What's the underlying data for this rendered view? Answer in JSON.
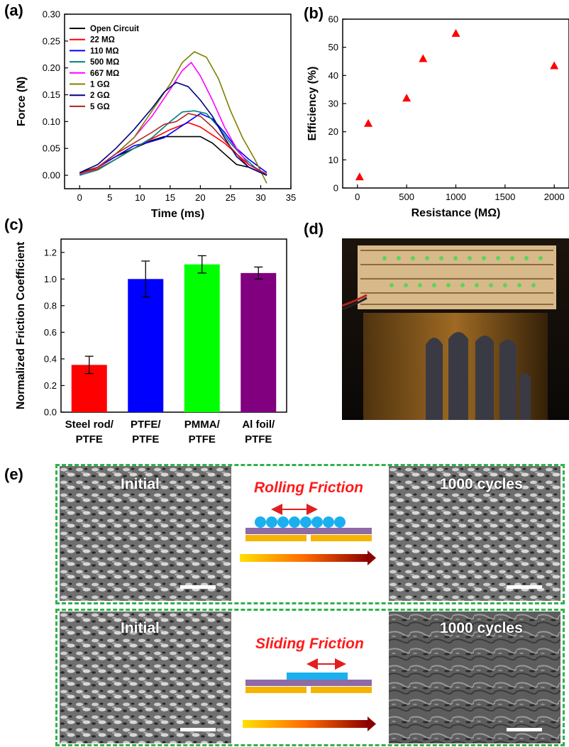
{
  "panels": {
    "a": "(a)",
    "b": "(b)",
    "c": "(c)",
    "d": "(d)",
    "e": "(e)"
  },
  "chart_data": [
    {
      "panel": "a",
      "type": "line",
      "xlabel": "Time (ms)",
      "ylabel": "Force (N)",
      "xlim": [
        -2.5,
        35
      ],
      "ylim": [
        -0.025,
        0.3
      ],
      "xticks": [
        0,
        5,
        10,
        15,
        20,
        25,
        30,
        35
      ],
      "yticks": [
        0.0,
        0.05,
        0.1,
        0.15,
        0.2,
        0.25,
        0.3
      ],
      "legend_position": "top-left",
      "series": [
        {
          "name": "Open Circuit",
          "color": "#000000",
          "points": [
            [
              0,
              0.005
            ],
            [
              3,
              0.015
            ],
            [
              6,
              0.035
            ],
            [
              9,
              0.05
            ],
            [
              12,
              0.065
            ],
            [
              14,
              0.072
            ],
            [
              17,
              0.072
            ],
            [
              20,
              0.072
            ],
            [
              22,
              0.06
            ],
            [
              24,
              0.04
            ],
            [
              26,
              0.02
            ],
            [
              28,
              0.015
            ],
            [
              31,
              0.0
            ]
          ]
        },
        {
          "name": "22 MΩ",
          "color": "#ff0000",
          "points": [
            [
              0,
              0.003
            ],
            [
              3,
              0.012
            ],
            [
              6,
              0.03
            ],
            [
              9,
              0.05
            ],
            [
              12,
              0.068
            ],
            [
              15,
              0.085
            ],
            [
              18,
              0.098
            ],
            [
              20,
              0.09
            ],
            [
              22,
              0.075
            ],
            [
              24,
              0.06
            ],
            [
              26,
              0.04
            ],
            [
              28,
              0.015
            ],
            [
              31,
              0.0
            ]
          ]
        },
        {
          "name": "110 MΩ",
          "color": "#0000ff",
          "points": [
            [
              0,
              0.002
            ],
            [
              3,
              0.015
            ],
            [
              6,
              0.035
            ],
            [
              9,
              0.055
            ],
            [
              11,
              0.06
            ],
            [
              14,
              0.07
            ],
            [
              16,
              0.085
            ],
            [
              18,
              0.1
            ],
            [
              20,
              0.115
            ],
            [
              22,
              0.105
            ],
            [
              24,
              0.08
            ],
            [
              26,
              0.05
            ],
            [
              28,
              0.03
            ],
            [
              31,
              0.005
            ]
          ]
        },
        {
          "name": "500 MΩ",
          "color": "#008080",
          "points": [
            [
              0,
              0.0
            ],
            [
              3,
              0.01
            ],
            [
              6,
              0.03
            ],
            [
              9,
              0.05
            ],
            [
              12,
              0.07
            ],
            [
              15,
              0.1
            ],
            [
              17,
              0.118
            ],
            [
              19,
              0.12
            ],
            [
              21,
              0.115
            ],
            [
              23,
              0.09
            ],
            [
              25,
              0.06
            ],
            [
              27,
              0.035
            ],
            [
              29,
              0.015
            ],
            [
              31,
              0.0
            ]
          ]
        },
        {
          "name": "667 MΩ",
          "color": "#ff00ff",
          "points": [
            [
              0,
              0.002
            ],
            [
              3,
              0.015
            ],
            [
              6,
              0.04
            ],
            [
              9,
              0.07
            ],
            [
              12,
              0.11
            ],
            [
              15,
              0.16
            ],
            [
              17,
              0.195
            ],
            [
              18.5,
              0.21
            ],
            [
              20,
              0.185
            ],
            [
              22,
              0.14
            ],
            [
              24,
              0.09
            ],
            [
              26,
              0.05
            ],
            [
              28,
              0.02
            ],
            [
              31,
              0.0
            ]
          ]
        },
        {
          "name": "1 GΩ",
          "color": "#808000",
          "points": [
            [
              0,
              0.003
            ],
            [
              3,
              0.015
            ],
            [
              6,
              0.04
            ],
            [
              9,
              0.07
            ],
            [
              12,
              0.12
            ],
            [
              15,
              0.17
            ],
            [
              17,
              0.21
            ],
            [
              19,
              0.23
            ],
            [
              21,
              0.22
            ],
            [
              23,
              0.18
            ],
            [
              25,
              0.12
            ],
            [
              27,
              0.07
            ],
            [
              29,
              0.03
            ],
            [
              31,
              -0.015
            ]
          ]
        },
        {
          "name": "2 GΩ",
          "color": "#000080",
          "points": [
            [
              0,
              0.005
            ],
            [
              3,
              0.02
            ],
            [
              6,
              0.05
            ],
            [
              9,
              0.085
            ],
            [
              12,
              0.125
            ],
            [
              14,
              0.155
            ],
            [
              16,
              0.173
            ],
            [
              18,
              0.165
            ],
            [
              20,
              0.14
            ],
            [
              22,
              0.11
            ],
            [
              24,
              0.07
            ],
            [
              26,
              0.035
            ],
            [
              28,
              0.015
            ],
            [
              31,
              0.0
            ]
          ]
        },
        {
          "name": "5 GΩ",
          "color": "#b22222",
          "points": [
            [
              0,
              0.003
            ],
            [
              3,
              0.015
            ],
            [
              6,
              0.04
            ],
            [
              9,
              0.06
            ],
            [
              12,
              0.08
            ],
            [
              14,
              0.095
            ],
            [
              16,
              0.1
            ],
            [
              18,
              0.115
            ],
            [
              20,
              0.11
            ],
            [
              22,
              0.09
            ],
            [
              24,
              0.065
            ],
            [
              26,
              0.04
            ],
            [
              28,
              0.02
            ],
            [
              31,
              0.002
            ]
          ]
        }
      ]
    },
    {
      "panel": "b",
      "type": "scatter",
      "xlabel": "Resistance (MΩ)",
      "ylabel": "Efficiency (%)",
      "xlim": [
        -150,
        2150
      ],
      "ylim": [
        0,
        60
      ],
      "xticks": [
        0,
        500,
        1000,
        1500,
        2000
      ],
      "yticks": [
        0,
        10,
        20,
        30,
        40,
        50,
        60
      ],
      "marker_color": "#ff0000",
      "x": [
        22,
        110,
        500,
        667,
        1000,
        2000
      ],
      "y": [
        4,
        23,
        32,
        46,
        55,
        43.5
      ]
    },
    {
      "panel": "c",
      "type": "bar",
      "ylabel": "Normalized Friction Coefficient",
      "ylim": [
        0,
        1.3
      ],
      "yticks": [
        0.0,
        0.2,
        0.4,
        0.6,
        0.8,
        1.0,
        1.2
      ],
      "categories": [
        [
          "Steel rod/",
          "PTFE"
        ],
        [
          "PTFE/",
          "PTFE"
        ],
        [
          "PMMA/",
          "PTFE"
        ],
        [
          "Al foil/",
          "PTFE"
        ]
      ],
      "values": [
        0.355,
        1.0,
        1.11,
        1.045
      ],
      "errors": [
        0.065,
        0.135,
        0.065,
        0.045
      ],
      "colors": [
        "#ff0000",
        "#0000ff",
        "#00ff00",
        "#800080"
      ]
    }
  ],
  "panel_e": {
    "top": {
      "left_label": "Initial",
      "title": "Rolling Friction",
      "right_label": "1000 cycles"
    },
    "bottom": {
      "left_label": "Initial",
      "title": "Sliding Friction",
      "right_label": "1000 cycles"
    },
    "colors": {
      "box_border": "#2db34a",
      "ball": "#1ab0f0",
      "layer": "#8e6aa6",
      "electrode": "#f5b400",
      "arrow": "#e02020"
    }
  }
}
